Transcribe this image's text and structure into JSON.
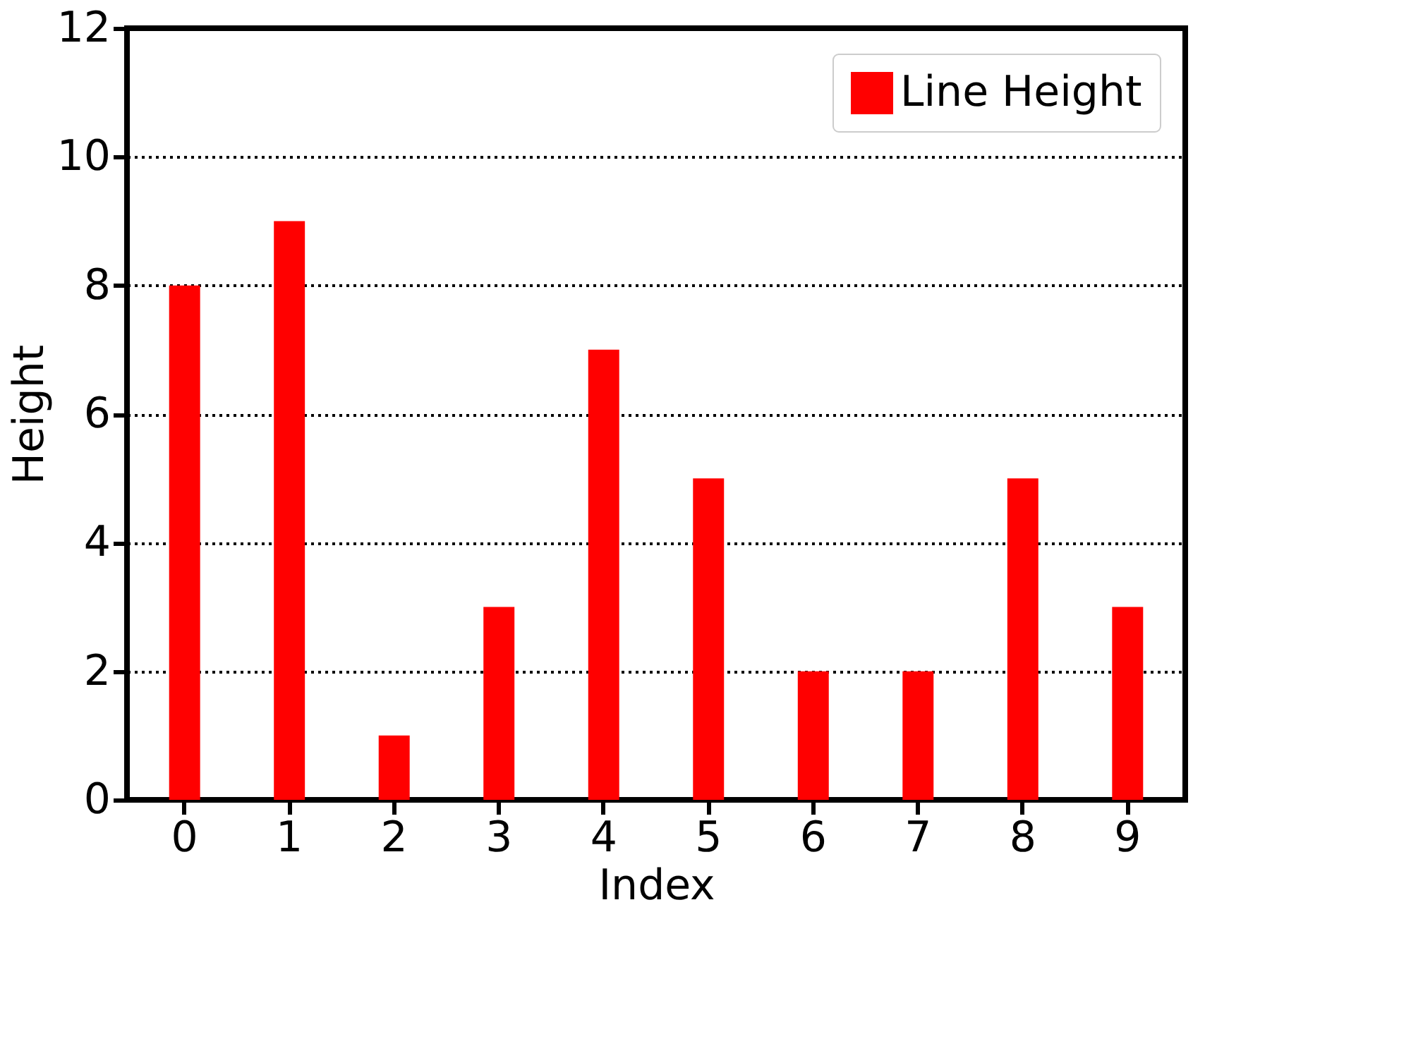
{
  "chart_data": {
    "type": "bar",
    "xlabel": "Index",
    "ylabel": "Height",
    "categories": [
      "0",
      "1",
      "2",
      "3",
      "4",
      "5",
      "6",
      "7",
      "8",
      "9"
    ],
    "series": [
      {
        "name": "Line Height",
        "color": "#ff0000",
        "values": [
          8,
          9,
          1,
          3,
          7,
          5,
          2,
          2,
          5,
          3
        ]
      }
    ],
    "ylim": [
      0,
      12
    ],
    "yticks": [
      0,
      2,
      4,
      6,
      8,
      10,
      12
    ],
    "grid": "y",
    "line_style": "dotted",
    "legend": "top right"
  }
}
